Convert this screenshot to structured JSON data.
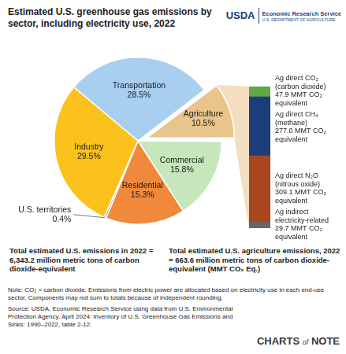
{
  "header": {
    "title": "Estimated U.S. greenhouse gas emissions by sector, including electricity use, 2022",
    "agency_logo": "USDA",
    "agency_name": "Economic Research Service",
    "department": "U.S. DEPARTMENT OF AGRICULTURE"
  },
  "chart_data": [
    {
      "type": "pie",
      "categories": [
        "Transportation",
        "Agriculture",
        "Commercial",
        "Residential",
        "U.S. territories",
        "Industry"
      ],
      "values": [
        28.5,
        10.5,
        15.8,
        15.3,
        0.4,
        29.5
      ],
      "value_labels": [
        "28.5%",
        "10.5%",
        "15.8%",
        "15.3%",
        "0.4%",
        "29.5%"
      ],
      "colors": [
        "#a8cff0",
        "#e9c58c",
        "#c6e6bc",
        "#f0893b",
        "#9b9b9b",
        "#fbc21d"
      ],
      "data_labels": true,
      "annotations": [
        "Total estimated U.S. emissions in 2022 = 6,343.2 million metric tons of carbon dioxide-equivalent"
      ]
    },
    {
      "type": "bar",
      "stacked": true,
      "categories": [
        null
      ],
      "series": [
        {
          "name": "Ag indirect electricity-related",
          "color": "#666666",
          "values": [
            29.7
          ],
          "value_labels": [
            "29.7 MMT CO₂ equivalent"
          ]
        },
        {
          "name": "Ag direct N₂O (nitrous oxide)",
          "color": "#a8461d",
          "values": [
            309.1
          ],
          "value_labels": [
            "309.1 MMT CO₂ equivalent"
          ]
        },
        {
          "name": "Ag direct CH₄ (methane)",
          "color": "#1d3e7b",
          "values": [
            277.0
          ],
          "value_labels": [
            "277.0 MMT CO₂ equivalent"
          ]
        },
        {
          "name": "Ag direct CO₂ (carbon dioxide)",
          "color": "#5fa845",
          "values": [
            47.9
          ],
          "value_labels": [
            "47.9 MMT CO₂ equivalent"
          ]
        }
      ],
      "ylim": [
        0,
        663.7
      ],
      "tick_labels": false,
      "data_labels": true,
      "annotations": [
        "Total estimated U.S. agriculture emissions, 2022 = 663.6 million metric tons of carbon dioxide-equivalent (MMT CO₂ Eq.)"
      ]
    }
  ],
  "footer": {
    "note": "Note: CO₂ = carbon dioxide. Emissions from electric power are allocated based on electricity use in each end-use sector. Components may not sum to totals because of independent rounding.",
    "source": "Source: USDA, Economic Research Service using data from U.S. Environmental Protection Agency, April 2024: Inventory of U.S. Greenhouse Gas Emissions and Sinks: 1990–2022, table 2-12.",
    "brand": "CHARTS of NOTE"
  }
}
